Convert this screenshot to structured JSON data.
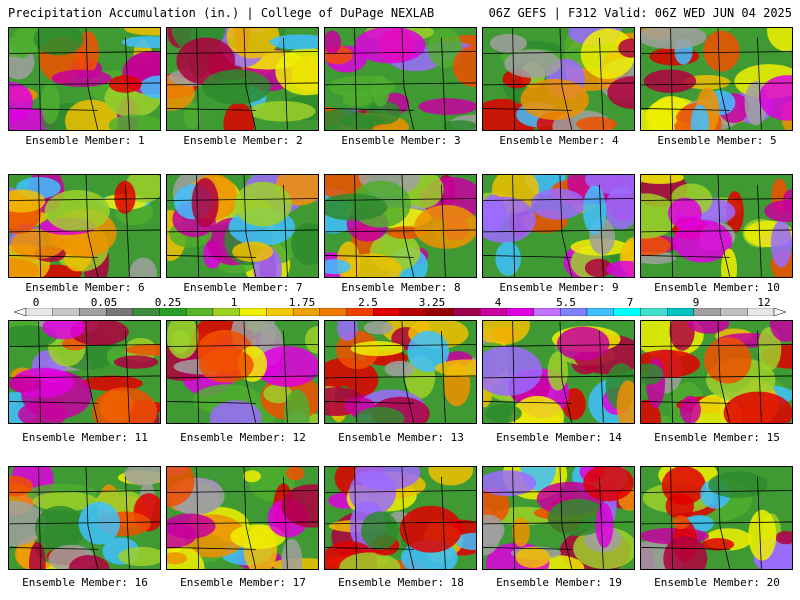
{
  "header": {
    "left": "Precipitation Accumulation (in.) | College of DuPage NEXLAB",
    "right": "06Z GEFS | F312 Valid: 06Z WED JUN 04 2025"
  },
  "members": [
    "Ensemble Member: 1",
    "Ensemble Member: 2",
    "Ensemble Member: 3",
    "Ensemble Member: 4",
    "Ensemble Member: 5",
    "Ensemble Member: 6",
    "Ensemble Member: 7",
    "Ensemble Member: 8",
    "Ensemble Member: 9",
    "Ensemble Member: 10",
    "Ensemble Member: 11",
    "Ensemble Member: 12",
    "Ensemble Member: 13",
    "Ensemble Member: 14",
    "Ensemble Member: 15",
    "Ensemble Member: 16",
    "Ensemble Member: 17",
    "Ensemble Member: 18",
    "Ensemble Member: 19",
    "Ensemble Member: 20"
  ],
  "colorbar": {
    "labels": [
      "0",
      "0.05",
      "0.25",
      "1",
      "1.75",
      "2.5",
      "3.25",
      "4",
      "5.5",
      "7",
      "9",
      "12"
    ],
    "colors": [
      "#e6e6e6",
      "#c8c8c8",
      "#a0a0a0",
      "#787878",
      "#3c8c3c",
      "#28a028",
      "#5ab428",
      "#a0d020",
      "#f0f000",
      "#f0c800",
      "#f0a000",
      "#f07800",
      "#f04000",
      "#e00000",
      "#b40000",
      "#960000",
      "#a00050",
      "#c800a0",
      "#e000e0",
      "#c070ff",
      "#7f7fff",
      "#40c0ff",
      "#00ffff",
      "#40e0d0",
      "#00c0c0",
      "#a0a0a0",
      "#c0c0c0",
      "#e6e6e6"
    ]
  }
}
